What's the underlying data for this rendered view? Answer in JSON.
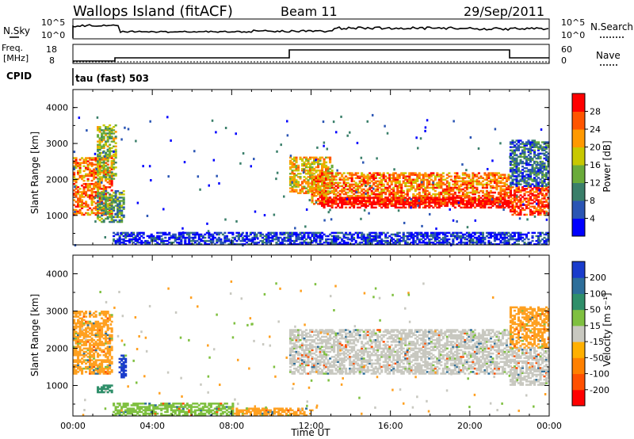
{
  "header": {
    "station": "Wallops Island (fitACF)",
    "beam": "Beam 11",
    "date": "29/Sep/2011"
  },
  "top_panels": {
    "nsky_label": "N.Sky",
    "nsearch_label": "N.Search",
    "freq_label_1": "Freq.",
    "freq_label_2": "[MHz]",
    "nave_label": "Nave",
    "cpid_label": "CPID",
    "cpid_value": "tau (fast) 503",
    "noise_ticks": [
      "10^5",
      "10^0"
    ],
    "freq_ticks": [
      "18",
      "8"
    ],
    "nave_ticks": [
      "60",
      "0"
    ]
  },
  "chart_data": [
    {
      "type": "heatmap",
      "title": "",
      "xlabel": "Time UT",
      "ylabel": "Slant Range [km]",
      "x_ticks": [
        "00:00",
        "04:00",
        "08:00",
        "12:00",
        "16:00",
        "20:00",
        "00:00"
      ],
      "xlim_hours": [
        0,
        24
      ],
      "ylim_km": [
        180,
        4500
      ],
      "y_ticks": [
        1000,
        2000,
        3000,
        4000
      ],
      "colorbar": {
        "label": "Power [dB]",
        "ticks": [
          "4",
          "8",
          "12",
          "16",
          "20",
          "24",
          "28"
        ],
        "colors": [
          "#0000ff",
          "#2a55b4",
          "#3a7f6a",
          "#6aab3a",
          "#c8c800",
          "#ff9900",
          "#ff5500",
          "#ff0000"
        ]
      },
      "regions": [
        {
          "t": [
            0.0,
            2.0
          ],
          "r": [
            1000,
            2600
          ],
          "level": 6
        },
        {
          "t": [
            1.2,
            2.2
          ],
          "r": [
            2000,
            3500
          ],
          "level": 4
        },
        {
          "t": [
            1.2,
            2.6
          ],
          "r": [
            800,
            1700
          ],
          "level": 3
        },
        {
          "t": [
            10.9,
            13.0
          ],
          "r": [
            1600,
            2600
          ],
          "level": 5
        },
        {
          "t": [
            12.0,
            22.0
          ],
          "r": [
            1300,
            2200
          ],
          "level": 6
        },
        {
          "t": [
            12.5,
            22.0
          ],
          "r": [
            1200,
            1500
          ],
          "level": 8
        },
        {
          "t": [
            22.0,
            24.0
          ],
          "r": [
            1000,
            1800
          ],
          "level": 7
        },
        {
          "t": [
            22.0,
            24.0
          ],
          "r": [
            1800,
            3100
          ],
          "level": 2
        },
        {
          "t": [
            2.0,
            24.0
          ],
          "r": [
            180,
            500
          ],
          "level": 1
        }
      ]
    },
    {
      "type": "heatmap",
      "title": "",
      "xlabel": "Time UT",
      "ylabel": "Slant Range [km]",
      "x_ticks": [
        "00:00",
        "04:00",
        "08:00",
        "12:00",
        "16:00",
        "20:00",
        "00:00"
      ],
      "xlim_hours": [
        0,
        24
      ],
      "ylim_km": [
        180,
        4500
      ],
      "y_ticks": [
        1000,
        2000,
        3000,
        4000
      ],
      "colorbar": {
        "label": "Velocity [m s⁻¹]",
        "ticks": [
          "200",
          "100",
          "50",
          "15",
          "-15",
          "-50",
          "-100",
          "-200"
        ],
        "colors": [
          "#1a3ccc",
          "#2d6e9a",
          "#2f8f6a",
          "#7fc040",
          "#c8c8c0",
          "#ffb000",
          "#ff8000",
          "#ff5000",
          "#ff0000"
        ]
      },
      "regions": [
        {
          "t": [
            0.0,
            2.0
          ],
          "r": [
            1300,
            3000
          ],
          "level": "orange"
        },
        {
          "t": [
            2.3,
            2.7
          ],
          "r": [
            1200,
            1800
          ],
          "level": "blue"
        },
        {
          "t": [
            1.2,
            2.0
          ],
          "r": [
            800,
            1000
          ],
          "level": "teal"
        },
        {
          "t": [
            10.9,
            22.0
          ],
          "r": [
            1300,
            2500
          ],
          "level": "grey"
        },
        {
          "t": [
            22.0,
            24.0
          ],
          "r": [
            1000,
            2000
          ],
          "level": "grey"
        },
        {
          "t": [
            22.0,
            24.0
          ],
          "r": [
            2000,
            3100
          ],
          "level": "orange"
        },
        {
          "t": [
            2.0,
            8.0
          ],
          "r": [
            180,
            500
          ],
          "level": "green"
        },
        {
          "t": [
            8.0,
            12.0
          ],
          "r": [
            180,
            400
          ],
          "level": "orange"
        }
      ]
    }
  ]
}
